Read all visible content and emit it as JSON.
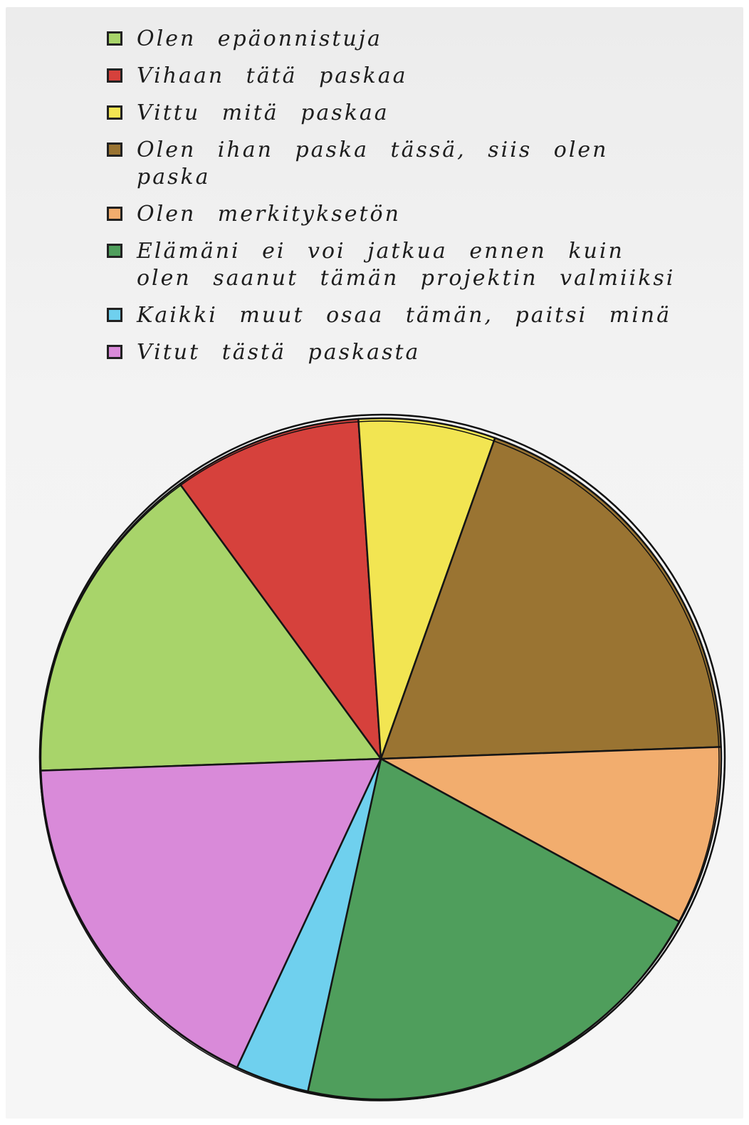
{
  "chart_data": {
    "type": "pie",
    "title": "",
    "series": [
      {
        "name": "Olen epäonnistuja",
        "value": 15.5,
        "color": "#a8d46a"
      },
      {
        "name": "Vihaan tätä paskaa",
        "value": 9.0,
        "color": "#d6413c"
      },
      {
        "name": "Vittu mitä paskaa",
        "value": 6.5,
        "color": "#f2e552"
      },
      {
        "name": "Olen ihan paska tässä, siis olen paska",
        "value": 19.0,
        "color": "#9a7432"
      },
      {
        "name": "Olen merkityksetön",
        "value": 8.5,
        "color": "#f2ad6e"
      },
      {
        "name": "Elämäni ei voi jatkua ennen kuin olen saanut tämän projektin valmiiksi",
        "value": 20.5,
        "color": "#4f9e5c"
      },
      {
        "name": "Kaikki muut osaa tämän, paitsi minä",
        "value": 3.5,
        "color": "#6fd0ee"
      },
      {
        "name": "Vitut tästä paskasta",
        "value": 17.5,
        "color": "#d98ad9"
      }
    ],
    "legend_position": "top"
  }
}
